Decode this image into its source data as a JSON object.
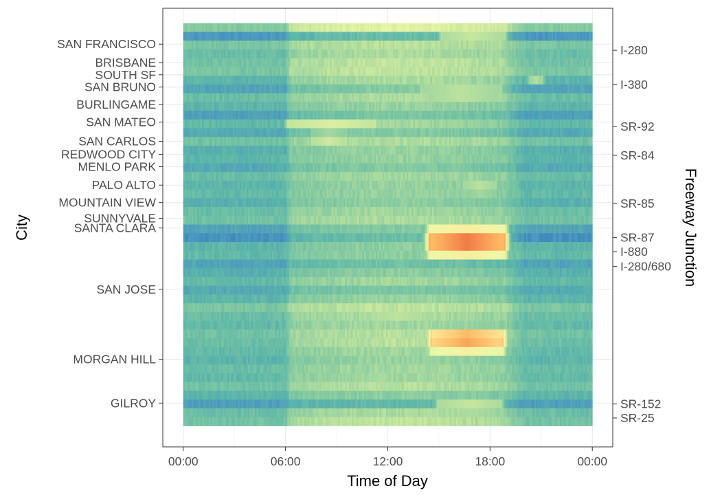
{
  "chart_data": {
    "type": "heatmap",
    "title": "",
    "xlabel": "Time of Day",
    "ylabel": "City",
    "y2label": "Freeway Junction",
    "x_ticks": [
      "00:00",
      "06:00",
      "12:00",
      "18:00",
      "00:00"
    ],
    "x_tick_hours": [
      0,
      6,
      12,
      18,
      24
    ],
    "x_range_hours": [
      -1.2,
      25.2
    ],
    "grid": true,
    "legend": "none",
    "color_scale": [
      "#2c6fb4",
      "#4a97c0",
      "#5cb6a9",
      "#89cca0",
      "#c3e59d",
      "#eef8a8",
      "#fee99a",
      "#fdb561",
      "#ee6b42",
      "#c8233a"
    ],
    "row_count": 46,
    "row_index_range": [
      -2.2,
      47.9
    ],
    "cities": [
      {
        "name": "SAN FRANCISCO",
        "row": 1.9
      },
      {
        "name": "BRISBANE",
        "row": 4.0
      },
      {
        "name": "SOUTH SF",
        "row": 5.4
      },
      {
        "name": "SAN BRUNO",
        "row": 6.8
      },
      {
        "name": "BURLINGAME",
        "row": 8.8
      },
      {
        "name": "SAN MATEO",
        "row": 10.8
      },
      {
        "name": "SAN CARLOS",
        "row": 13.0
      },
      {
        "name": "REDWOOD CITY",
        "row": 14.5
      },
      {
        "name": "MENLO PARK",
        "row": 15.9
      },
      {
        "name": "PALO ALTO",
        "row": 18.0
      },
      {
        "name": "MOUNTAIN VIEW",
        "row": 20.0
      },
      {
        "name": "SUNNYVALE",
        "row": 21.8
      },
      {
        "name": "SANTA CLARA",
        "row": 22.9
      },
      {
        "name": "SAN JOSE",
        "row": 29.9
      },
      {
        "name": "MORGAN HILL",
        "row": 37.9
      },
      {
        "name": "GILROY",
        "row": 42.9
      }
    ],
    "junctions": [
      {
        "name": "I-280",
        "row": 2.6
      },
      {
        "name": "I-380",
        "row": 6.5
      },
      {
        "name": "SR-92",
        "row": 11.3
      },
      {
        "name": "SR-84",
        "row": 14.6
      },
      {
        "name": "SR-85",
        "row": 20.1
      },
      {
        "name": "SR-87",
        "row": 24.0
      },
      {
        "name": "I-880",
        "row": 25.6
      },
      {
        "name": "I-280/680",
        "row": 27.3
      },
      {
        "name": "SR-152",
        "row": 43.0
      },
      {
        "name": "SR-25",
        "row": 44.6
      }
    ],
    "row_base": [
      0.32,
      0.12,
      0.3,
      0.26,
      0.28,
      0.3,
      0.22,
      0.16,
      0.26,
      0.22,
      0.14,
      0.24,
      0.18,
      0.28,
      0.2,
      0.22,
      0.18,
      0.26,
      0.22,
      0.24,
      0.2,
      0.26,
      0.28,
      0.16,
      0.1,
      0.22,
      0.24,
      0.16,
      0.2,
      0.24,
      0.18,
      0.22,
      0.3,
      0.26,
      0.24,
      0.28,
      0.26,
      0.24,
      0.22,
      0.26,
      0.24,
      0.28,
      0.22,
      0.14,
      0.26,
      0.28
    ],
    "row_day_amp": [
      0.2,
      0.14,
      0.12,
      0.14,
      0.16,
      0.14,
      0.18,
      0.16,
      0.14,
      0.14,
      0.16,
      0.14,
      0.14,
      0.12,
      0.16,
      0.14,
      0.14,
      0.12,
      0.14,
      0.12,
      0.14,
      0.12,
      0.12,
      0.16,
      0.16,
      0.12,
      0.1,
      0.12,
      0.14,
      0.14,
      0.12,
      0.14,
      0.14,
      0.14,
      0.14,
      0.14,
      0.16,
      0.14,
      0.14,
      0.12,
      0.14,
      0.14,
      0.12,
      0.1,
      0.14,
      0.16
    ],
    "hotspots": [
      {
        "row": 24.5,
        "row_spread": 1.5,
        "hour_start": 14.5,
        "hour_end": 18.8,
        "peak": 0.98
      },
      {
        "row": 35.6,
        "row_spread": 1.6,
        "hour_start": 14.6,
        "hour_end": 18.7,
        "peak": 0.88
      },
      {
        "row": 0.4,
        "row_spread": 1.2,
        "hour_start": 15.2,
        "hour_end": 18.8,
        "peak": 0.55
      },
      {
        "row": 7.5,
        "row_spread": 0.8,
        "hour_start": 14.0,
        "hour_end": 18.6,
        "peak": 0.55
      },
      {
        "row": 10.8,
        "row_spread": 0.7,
        "hour_start": 6.2,
        "hour_end": 11.2,
        "peak": 0.56
      },
      {
        "row": 12.8,
        "row_spread": 1.2,
        "hour_start": 7.6,
        "hour_end": 9.5,
        "peak": 0.5
      },
      {
        "row": 18.4,
        "row_spread": 0.8,
        "hour_start": 16.5,
        "hour_end": 18.3,
        "peak": 0.52
      },
      {
        "row": 5.6,
        "row_spread": 0.5,
        "hour_start": 20.4,
        "hour_end": 21.0,
        "peak": 0.58
      },
      {
        "row": 43.4,
        "row_spread": 0.8,
        "hour_start": 15.0,
        "hour_end": 18.6,
        "peak": 0.55
      },
      {
        "row": 32.8,
        "row_spread": 2.2,
        "hour_start": 10.5,
        "hour_end": 14.6,
        "peak": 0.45
      }
    ]
  }
}
